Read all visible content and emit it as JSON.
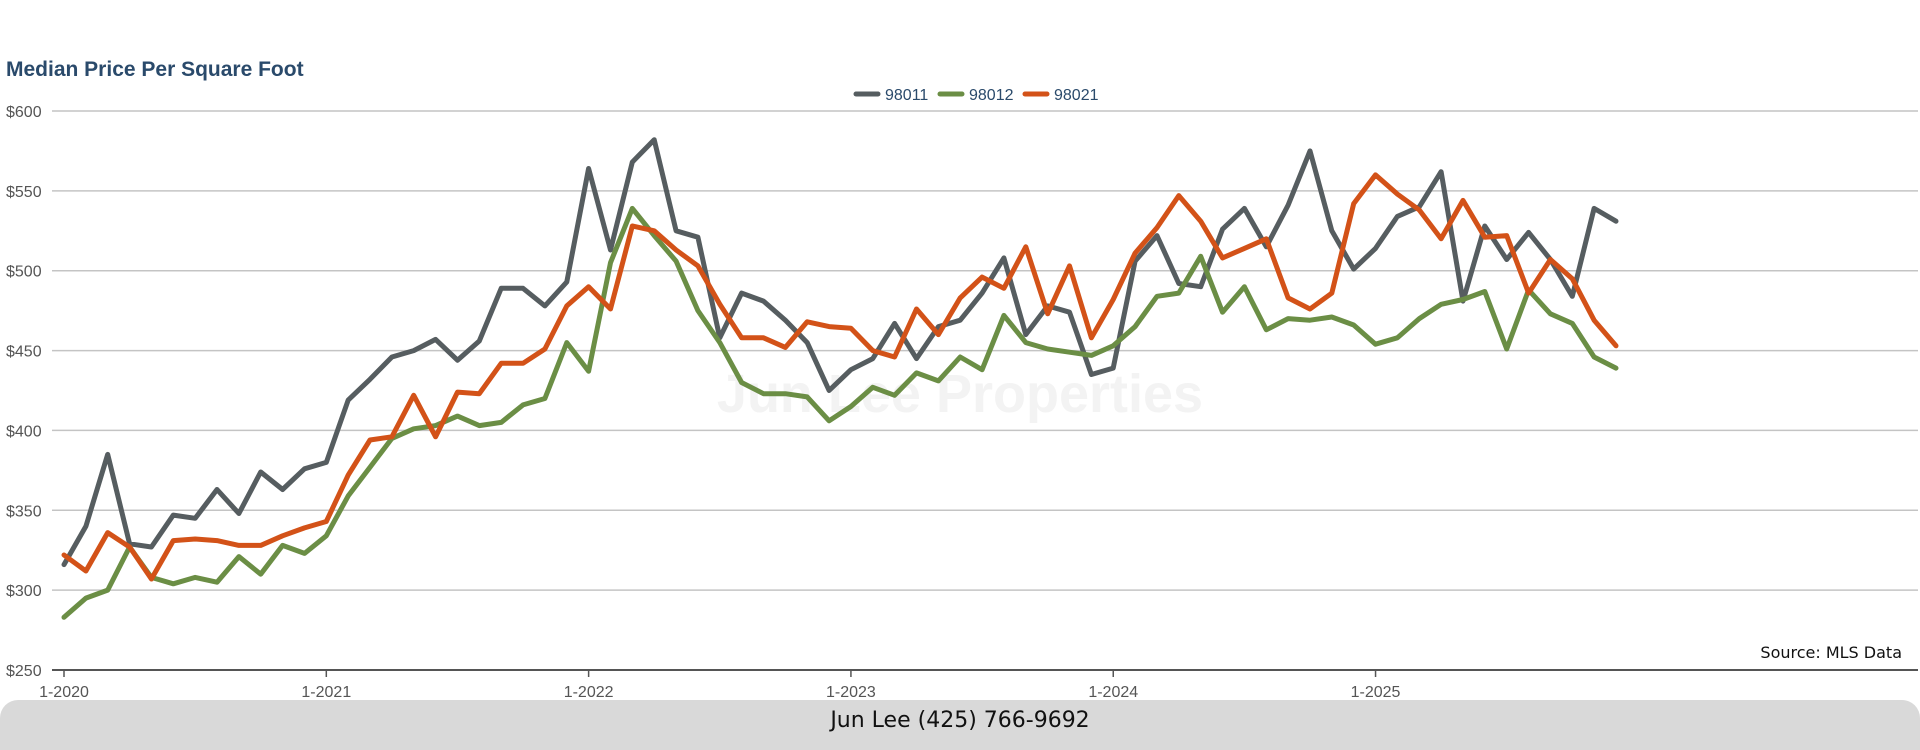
{
  "footer": {
    "contact": "Jun Lee (425) 766-9692"
  },
  "watermark": "Jun Lee Properties",
  "chart_data": {
    "type": "line",
    "title": "Median Price Per Square Foot",
    "source": "Source: MLS Data",
    "legend_position": "top-center",
    "grid": true,
    "ylim": [
      250,
      600
    ],
    "yticks": [
      250,
      300,
      350,
      400,
      450,
      500,
      550,
      600
    ],
    "ytick_labels": [
      "$250",
      "$300",
      "$350",
      "$400",
      "$450",
      "$500",
      "$550",
      "$600"
    ],
    "xticks": [
      0,
      12,
      24,
      36,
      48,
      60
    ],
    "xtick_labels": [
      "1-2020",
      "1-2021",
      "1-2022",
      "1-2023",
      "1-2024",
      "1-2025"
    ],
    "x_range": [
      0,
      71
    ],
    "series": [
      {
        "name": "98011",
        "color": "#565d60",
        "values": [
          316,
          340,
          385,
          329,
          327,
          347,
          345,
          363,
          348,
          374,
          363,
          376,
          380,
          419,
          432,
          446,
          450,
          457,
          444,
          456,
          489,
          489,
          478,
          493,
          564,
          513,
          568,
          582,
          525,
          521,
          458,
          486,
          481,
          469,
          455,
          425,
          438,
          445,
          467,
          445,
          465,
          469,
          486,
          508,
          460,
          478,
          474,
          435,
          439,
          506,
          522,
          492,
          490,
          526,
          539,
          515,
          541,
          575,
          525,
          501,
          514,
          534,
          540,
          562,
          481,
          528,
          507,
          524,
          507,
          484,
          539,
          531
        ]
      },
      {
        "name": "98012",
        "color": "#6b8e45",
        "values": [
          283,
          295,
          300,
          327,
          308,
          304,
          308,
          305,
          321,
          310,
          328,
          323,
          334,
          359,
          377,
          395,
          401,
          403,
          409,
          403,
          405,
          416,
          420,
          455,
          437,
          505,
          539,
          522,
          506,
          475,
          455,
          430,
          423,
          423,
          421,
          406,
          415,
          427,
          422,
          436,
          431,
          446,
          438,
          472,
          455,
          451,
          449,
          447,
          453,
          465,
          484,
          486,
          509,
          474,
          490,
          463,
          470,
          469,
          471,
          466,
          454,
          458,
          470,
          479,
          482,
          487,
          451,
          488,
          473,
          467,
          446,
          439
        ]
      },
      {
        "name": "98021",
        "color": "#d35218",
        "values": [
          322,
          312,
          336,
          327,
          307,
          331,
          332,
          331,
          328,
          328,
          334,
          339,
          343,
          372,
          394,
          396,
          422,
          396,
          424,
          423,
          442,
          442,
          451,
          478,
          490,
          476,
          528,
          525,
          513,
          503,
          479,
          458,
          458,
          452,
          468,
          465,
          464,
          450,
          446,
          476,
          460,
          483,
          496,
          489,
          515,
          473,
          503,
          458,
          482,
          511,
          527,
          547,
          531,
          508,
          514,
          520,
          483,
          476,
          486,
          542,
          560,
          548,
          538,
          520,
          544,
          521,
          522,
          486,
          507,
          495,
          469,
          453
        ]
      }
    ]
  }
}
